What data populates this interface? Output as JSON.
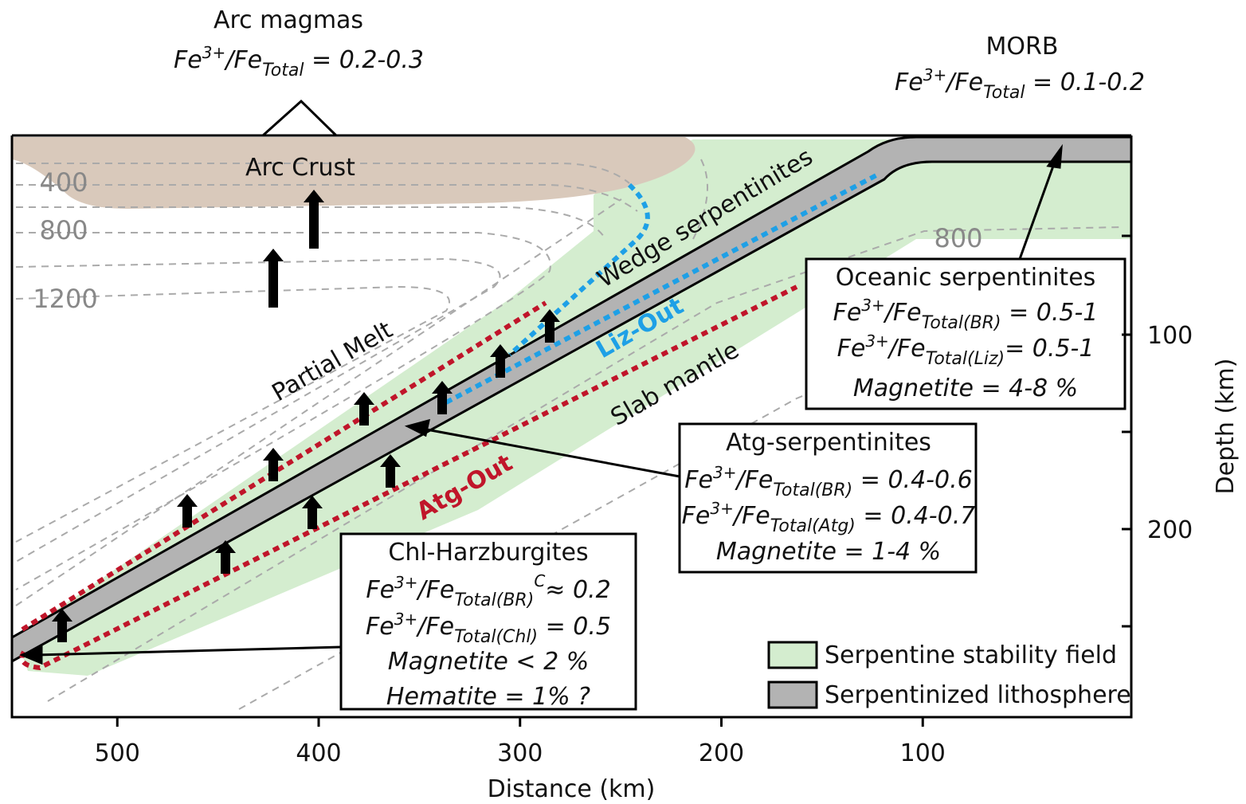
{
  "header": {
    "arc_magmas": "Arc magmas",
    "arc_ratio": {
      "base": "Fe",
      "sup": "3+",
      "mid": "/Fe",
      "sub": "Total",
      "rest": " = 0.2-0.3"
    },
    "morb": "MORB",
    "morb_ratio": {
      "base": "Fe",
      "sup": "3+",
      "mid": "/Fe",
      "sub": "Total",
      "rest": " = 0.1-0.2"
    }
  },
  "labels": {
    "arc_crust": "Arc Crust",
    "partial_melt": "Partial Melt",
    "wedge": "Wedge serpentinites",
    "liz_out": "Liz-Out",
    "slab_mantle": "Slab mantle",
    "atg_out": "Atg-Out"
  },
  "isotherms": [
    "400",
    "800",
    "1200",
    "800"
  ],
  "boxes": [
    {
      "title": "Oceanic serpentinites",
      "ratios": [
        {
          "base": "Fe",
          "sup": "3+",
          "mid": "/Fe",
          "sub": "Total(BR)",
          "rest": " = 0.5-1"
        },
        {
          "base": "Fe",
          "sup": "3+",
          "mid": "/Fe",
          "sub": "Total(Liz)",
          "rest": "= 0.5-1"
        }
      ],
      "minerals": [
        "Magnetite = 4-8 %"
      ]
    },
    {
      "title": "Atg-serpentinites",
      "ratios": [
        {
          "base": "Fe",
          "sup": "3+",
          "mid": "/Fe",
          "sub": "Total(BR)",
          "rest": " = 0.4-0.6"
        },
        {
          "base": "Fe",
          "sup": "3+",
          "mid": "/Fe",
          "sub": "Total(Atg)",
          "rest": " = 0.4-0.7"
        }
      ],
      "minerals": [
        "Magnetite = 1-4 %"
      ]
    },
    {
      "title": "Chl-Harzburgites",
      "ratios": [
        {
          "base": "Fe",
          "sup": "3+",
          "mid": "/Fe",
          "sub": "Total(BR)",
          "sup2": "C",
          "rest": "≈ 0.2"
        },
        {
          "base": "Fe",
          "sup": "3+",
          "mid": "/Fe",
          "sub": "Total(Chl)",
          "rest": " = 0.5"
        }
      ],
      "minerals": [
        "Magnetite < 2 %",
        "Hematite = 1% ?"
      ]
    }
  ],
  "legend": [
    "Serpentine stability field",
    "Serpentinized lithosphere"
  ],
  "x_axis": {
    "label": "Distance (km)",
    "ticks": [
      500,
      400,
      300,
      200,
      100
    ]
  },
  "depth_axis": {
    "label": "Depth (km)",
    "ticks": [
      100,
      200
    ]
  }
}
